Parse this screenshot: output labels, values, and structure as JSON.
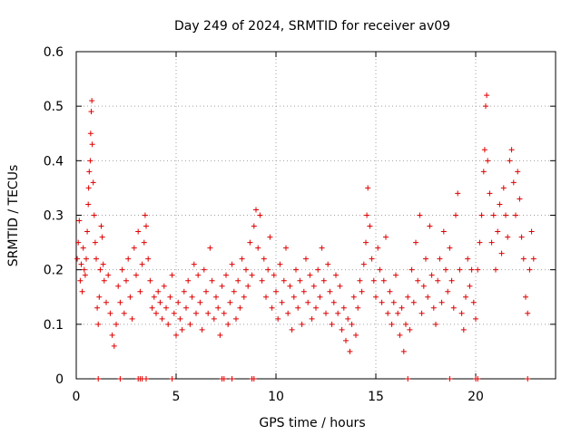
{
  "chart_data": {
    "type": "scatter",
    "title": "Day 249 of 2024, SRMTID for receiver av09",
    "xlabel": "GPS time / hours",
    "ylabel": "SRMTID / TECUs",
    "xlim": [
      0,
      24
    ],
    "ylim": [
      0,
      0.6
    ],
    "xticks": [
      0,
      5,
      10,
      15,
      20
    ],
    "xtick_labels": [
      "0",
      "5",
      "10",
      "15",
      "20"
    ],
    "yticks": [
      0,
      0.1,
      0.2,
      0.3,
      0.4,
      0.5,
      0.6
    ],
    "ytick_labels": [
      "0",
      "0.1",
      "0.2",
      "0.3",
      "0.4",
      "0.5",
      "0.6"
    ],
    "grid": true,
    "marker": "+",
    "color": "#e00000",
    "series": [
      {
        "name": "SRMTID",
        "points": [
          [
            0.05,
            0.22
          ],
          [
            0.1,
            0.25
          ],
          [
            0.15,
            0.29
          ],
          [
            0.2,
            0.18
          ],
          [
            0.25,
            0.21
          ],
          [
            0.3,
            0.16
          ],
          [
            0.35,
            0.24
          ],
          [
            0.4,
            0.2
          ],
          [
            0.45,
            0.19
          ],
          [
            0.5,
            0.22
          ],
          [
            0.55,
            0.27
          ],
          [
            0.6,
            0.32
          ],
          [
            0.62,
            0.35
          ],
          [
            0.65,
            0.38
          ],
          [
            0.7,
            0.4
          ],
          [
            0.72,
            0.45
          ],
          [
            0.75,
            0.49
          ],
          [
            0.78,
            0.51
          ],
          [
            0.8,
            0.43
          ],
          [
            0.85,
            0.36
          ],
          [
            0.9,
            0.3
          ],
          [
            0.95,
            0.25
          ],
          [
            1.0,
            0.22
          ],
          [
            1.05,
            0.13
          ],
          [
            1.1,
            0.1
          ],
          [
            1.15,
            0.15
          ],
          [
            1.2,
            0.2
          ],
          [
            1.25,
            0.28
          ],
          [
            1.3,
            0.26
          ],
          [
            1.35,
            0.21
          ],
          [
            1.4,
            0.18
          ],
          [
            1.5,
            0.14
          ],
          [
            1.6,
            0.19
          ],
          [
            1.7,
            0.12
          ],
          [
            1.8,
            0.08
          ],
          [
            1.9,
            0.06
          ],
          [
            2.0,
            0.1
          ],
          [
            2.1,
            0.17
          ],
          [
            2.2,
            0.14
          ],
          [
            2.3,
            0.2
          ],
          [
            2.4,
            0.12
          ],
          [
            2.5,
            0.18
          ],
          [
            2.6,
            0.22
          ],
          [
            2.7,
            0.15
          ],
          [
            2.8,
            0.11
          ],
          [
            2.9,
            0.24
          ],
          [
            3.0,
            0.19
          ],
          [
            3.1,
            0.27
          ],
          [
            3.2,
            0.16
          ],
          [
            3.3,
            0.21
          ],
          [
            3.4,
            0.25
          ],
          [
            3.45,
            0.3
          ],
          [
            3.5,
            0.28
          ],
          [
            3.6,
            0.22
          ],
          [
            3.7,
            0.18
          ],
          [
            3.8,
            0.13
          ],
          [
            3.9,
            0.15
          ],
          [
            4.0,
            0.12
          ],
          [
            4.1,
            0.16
          ],
          [
            4.2,
            0.14
          ],
          [
            4.3,
            0.11
          ],
          [
            4.4,
            0.17
          ],
          [
            4.5,
            0.13
          ],
          [
            4.6,
            0.1
          ],
          [
            4.7,
            0.15
          ],
          [
            4.8,
            0.19
          ],
          [
            4.9,
            0.12
          ],
          [
            5.0,
            0.08
          ],
          [
            5.1,
            0.14
          ],
          [
            5.2,
            0.11
          ],
          [
            5.3,
            0.09
          ],
          [
            5.4,
            0.16
          ],
          [
            5.5,
            0.13
          ],
          [
            5.6,
            0.18
          ],
          [
            5.7,
            0.1
          ],
          [
            5.8,
            0.15
          ],
          [
            5.9,
            0.21
          ],
          [
            6.0,
            0.12
          ],
          [
            6.1,
            0.19
          ],
          [
            6.2,
            0.14
          ],
          [
            6.3,
            0.09
          ],
          [
            6.4,
            0.2
          ],
          [
            6.5,
            0.16
          ],
          [
            6.6,
            0.12
          ],
          [
            6.7,
            0.24
          ],
          [
            6.8,
            0.18
          ],
          [
            6.9,
            0.11
          ],
          [
            7.0,
            0.15
          ],
          [
            7.1,
            0.13
          ],
          [
            7.2,
            0.08
          ],
          [
            7.3,
            0.17
          ],
          [
            7.4,
            0.12
          ],
          [
            7.5,
            0.19
          ],
          [
            7.6,
            0.1
          ],
          [
            7.7,
            0.14
          ],
          [
            7.8,
            0.21
          ],
          [
            7.9,
            0.16
          ],
          [
            8.0,
            0.11
          ],
          [
            8.1,
            0.18
          ],
          [
            8.2,
            0.13
          ],
          [
            8.3,
            0.22
          ],
          [
            8.4,
            0.15
          ],
          [
            8.5,
            0.2
          ],
          [
            8.6,
            0.17
          ],
          [
            8.7,
            0.25
          ],
          [
            8.8,
            0.19
          ],
          [
            8.9,
            0.28
          ],
          [
            9.0,
            0.31
          ],
          [
            9.1,
            0.24
          ],
          [
            9.2,
            0.3
          ],
          [
            9.3,
            0.18
          ],
          [
            9.4,
            0.22
          ],
          [
            9.5,
            0.15
          ],
          [
            9.6,
            0.2
          ],
          [
            9.7,
            0.26
          ],
          [
            9.8,
            0.13
          ],
          [
            9.9,
            0.19
          ],
          [
            10.0,
            0.16
          ],
          [
            10.1,
            0.11
          ],
          [
            10.2,
            0.21
          ],
          [
            10.3,
            0.14
          ],
          [
            10.4,
            0.18
          ],
          [
            10.5,
            0.24
          ],
          [
            10.6,
            0.12
          ],
          [
            10.7,
            0.17
          ],
          [
            10.8,
            0.09
          ],
          [
            10.9,
            0.15
          ],
          [
            11.0,
            0.2
          ],
          [
            11.1,
            0.13
          ],
          [
            11.2,
            0.18
          ],
          [
            11.3,
            0.1
          ],
          [
            11.4,
            0.16
          ],
          [
            11.5,
            0.22
          ],
          [
            11.6,
            0.14
          ],
          [
            11.7,
            0.19
          ],
          [
            11.8,
            0.11
          ],
          [
            11.9,
            0.17
          ],
          [
            12.0,
            0.13
          ],
          [
            12.1,
            0.2
          ],
          [
            12.2,
            0.15
          ],
          [
            12.3,
            0.24
          ],
          [
            12.4,
            0.18
          ],
          [
            12.5,
            0.12
          ],
          [
            12.6,
            0.21
          ],
          [
            12.7,
            0.16
          ],
          [
            12.8,
            0.1
          ],
          [
            12.9,
            0.14
          ],
          [
            13.0,
            0.19
          ],
          [
            13.1,
            0.12
          ],
          [
            13.2,
            0.17
          ],
          [
            13.3,
            0.09
          ],
          [
            13.4,
            0.13
          ],
          [
            13.5,
            0.07
          ],
          [
            13.6,
            0.11
          ],
          [
            13.7,
            0.05
          ],
          [
            13.8,
            0.1
          ],
          [
            13.9,
            0.15
          ],
          [
            14.0,
            0.08
          ],
          [
            14.1,
            0.13
          ],
          [
            14.2,
            0.18
          ],
          [
            14.3,
            0.16
          ],
          [
            14.4,
            0.21
          ],
          [
            14.5,
            0.25
          ],
          [
            14.55,
            0.3
          ],
          [
            14.6,
            0.35
          ],
          [
            14.7,
            0.28
          ],
          [
            14.8,
            0.22
          ],
          [
            14.9,
            0.18
          ],
          [
            15.0,
            0.15
          ],
          [
            15.1,
            0.24
          ],
          [
            15.2,
            0.2
          ],
          [
            15.3,
            0.14
          ],
          [
            15.4,
            0.18
          ],
          [
            15.5,
            0.26
          ],
          [
            15.6,
            0.12
          ],
          [
            15.7,
            0.16
          ],
          [
            15.8,
            0.1
          ],
          [
            15.9,
            0.14
          ],
          [
            16.0,
            0.19
          ],
          [
            16.1,
            0.12
          ],
          [
            16.2,
            0.08
          ],
          [
            16.3,
            0.13
          ],
          [
            16.4,
            0.05
          ],
          [
            16.5,
            0.1
          ],
          [
            16.6,
            0.15
          ],
          [
            16.7,
            0.09
          ],
          [
            16.8,
            0.2
          ],
          [
            16.9,
            0.14
          ],
          [
            17.0,
            0.25
          ],
          [
            17.1,
            0.18
          ],
          [
            17.2,
            0.3
          ],
          [
            17.3,
            0.12
          ],
          [
            17.4,
            0.17
          ],
          [
            17.5,
            0.22
          ],
          [
            17.6,
            0.15
          ],
          [
            17.7,
            0.28
          ],
          [
            17.8,
            0.19
          ],
          [
            17.9,
            0.13
          ],
          [
            18.0,
            0.1
          ],
          [
            18.1,
            0.18
          ],
          [
            18.2,
            0.22
          ],
          [
            18.3,
            0.14
          ],
          [
            18.4,
            0.27
          ],
          [
            18.5,
            0.2
          ],
          [
            18.6,
            0.16
          ],
          [
            18.7,
            0.24
          ],
          [
            18.8,
            0.18
          ],
          [
            18.9,
            0.13
          ],
          [
            19.0,
            0.3
          ],
          [
            19.1,
            0.34
          ],
          [
            19.2,
            0.2
          ],
          [
            19.3,
            0.12
          ],
          [
            19.4,
            0.09
          ],
          [
            19.5,
            0.15
          ],
          [
            19.6,
            0.22
          ],
          [
            19.7,
            0.17
          ],
          [
            19.8,
            0.2
          ],
          [
            19.9,
            0.14
          ],
          [
            20.0,
            0.11
          ],
          [
            20.1,
            0.2
          ],
          [
            20.2,
            0.25
          ],
          [
            20.3,
            0.3
          ],
          [
            20.4,
            0.38
          ],
          [
            20.45,
            0.42
          ],
          [
            20.5,
            0.5
          ],
          [
            20.55,
            0.52
          ],
          [
            20.6,
            0.4
          ],
          [
            20.7,
            0.34
          ],
          [
            20.8,
            0.25
          ],
          [
            20.9,
            0.3
          ],
          [
            21.0,
            0.2
          ],
          [
            21.1,
            0.27
          ],
          [
            21.2,
            0.32
          ],
          [
            21.3,
            0.23
          ],
          [
            21.4,
            0.35
          ],
          [
            21.5,
            0.3
          ],
          [
            21.6,
            0.26
          ],
          [
            21.7,
            0.4
          ],
          [
            21.8,
            0.42
          ],
          [
            21.9,
            0.36
          ],
          [
            22.0,
            0.3
          ],
          [
            22.1,
            0.38
          ],
          [
            22.2,
            0.33
          ],
          [
            22.3,
            0.26
          ],
          [
            22.4,
            0.22
          ],
          [
            22.5,
            0.15
          ],
          [
            22.6,
            0.12
          ],
          [
            22.7,
            0.2
          ],
          [
            22.8,
            0.27
          ],
          [
            22.9,
            0.22
          ]
        ]
      }
    ],
    "zero_points_x": [
      1.1,
      2.2,
      3.1,
      3.2,
      3.3,
      3.5,
      4.8,
      7.3,
      7.4,
      7.8,
      8.8,
      8.9,
      16.6,
      18.7,
      20.0,
      20.1,
      22.6
    ]
  }
}
